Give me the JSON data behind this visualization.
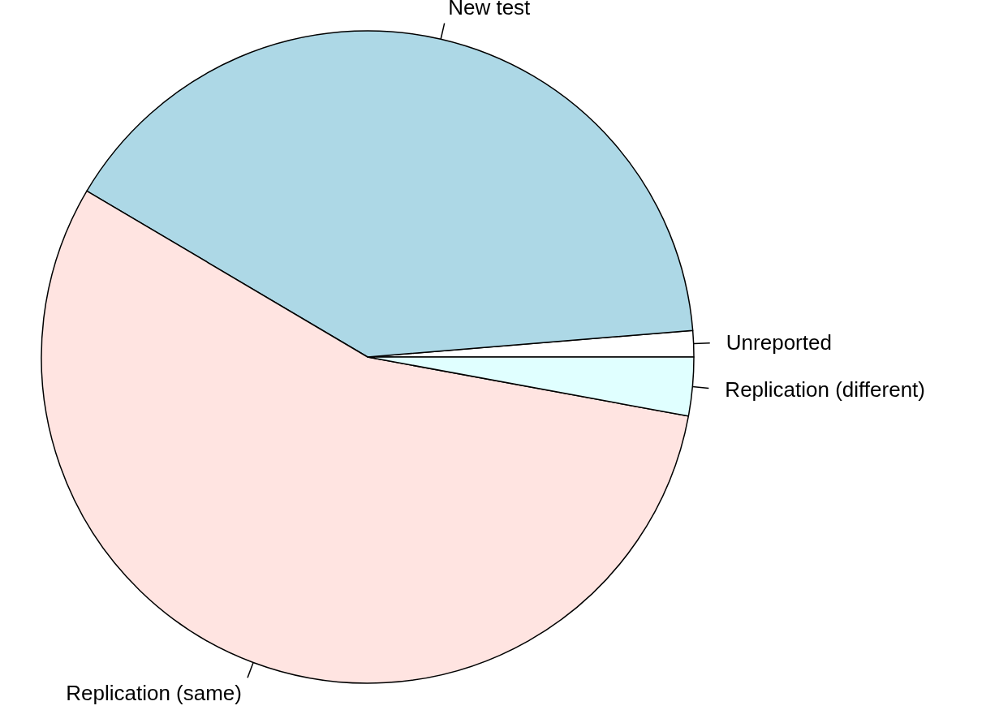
{
  "chart_data": {
    "type": "pie",
    "categories": [
      "Unreported",
      "New test",
      "Replication (same)",
      "Replication (different)"
    ],
    "values": [
      1.3,
      40.2,
      55.6,
      2.9
    ],
    "colors": [
      "#ffffff",
      "#add8e6",
      "#ffe4e1",
      "#e0ffff"
    ]
  }
}
